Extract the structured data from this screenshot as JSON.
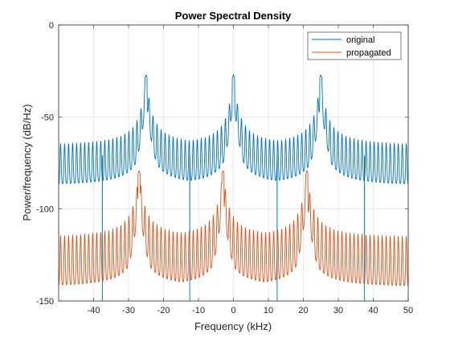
{
  "chart_data": {
    "type": "line",
    "title": "Power Spectral Density",
    "xlabel": "Frequency (kHz)",
    "ylabel": "Power/frequency (dB/Hz)",
    "xlim": [
      -50,
      50
    ],
    "ylim": [
      -150,
      0
    ],
    "xticks": [
      -40,
      -30,
      -20,
      -10,
      0,
      10,
      20,
      30,
      40,
      50
    ],
    "yticks": [
      0,
      -50,
      -100,
      -150
    ],
    "grid": true,
    "legend_position": "top-right",
    "series": [
      {
        "name": "original",
        "color": "#0072BD",
        "peaks_khz": [
          -25,
          0,
          25
        ],
        "peak_db": -27,
        "baseline_db": -66,
        "ripple_floor_db": -88,
        "notches_khz": [
          -37.5,
          -12.5,
          12.5,
          37.5
        ],
        "notch_db": -150
      },
      {
        "name": "propagated",
        "color": "#D95319",
        "peaks_khz": [
          -27,
          -3,
          21
        ],
        "peak_db": -79,
        "baseline_db": -116,
        "ripple_floor_db": -143
      }
    ]
  }
}
